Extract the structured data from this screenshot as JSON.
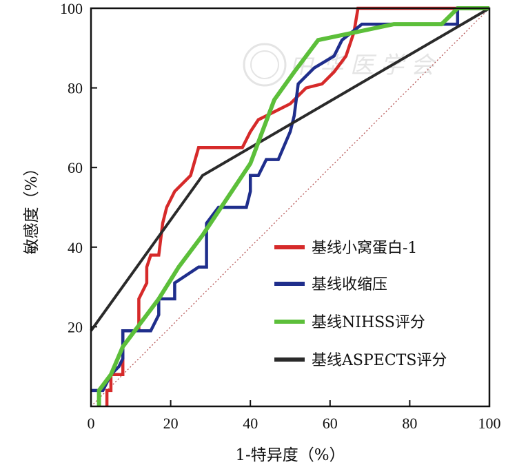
{
  "chart_data": {
    "type": "line",
    "title": "",
    "xlabel": "1-特异度（%）",
    "ylabel": "敏感度（%）",
    "xlim": [
      0,
      100
    ],
    "ylim": [
      0,
      100
    ],
    "x_ticks": [
      "0",
      "20",
      "40",
      "60",
      "80",
      "100"
    ],
    "y_ticks": [
      "20",
      "40",
      "60",
      "80",
      "100"
    ],
    "legend_position": "bottom-right",
    "reference_line": {
      "style": "dotted",
      "color": "#b04848",
      "points": [
        [
          0,
          0
        ],
        [
          100,
          100
        ]
      ]
    },
    "series": [
      {
        "name": "基线小窝蛋白-1",
        "color": "#d62a2a",
        "points": [
          [
            4,
            0
          ],
          [
            4,
            4
          ],
          [
            5,
            4
          ],
          [
            5,
            8
          ],
          [
            8,
            8
          ],
          [
            8,
            19
          ],
          [
            12,
            19
          ],
          [
            12,
            27
          ],
          [
            14,
            31
          ],
          [
            14,
            35
          ],
          [
            15,
            38
          ],
          [
            17,
            38
          ],
          [
            18,
            46
          ],
          [
            19,
            50
          ],
          [
            21,
            54
          ],
          [
            25,
            58
          ],
          [
            27,
            65
          ],
          [
            38,
            65
          ],
          [
            40,
            69
          ],
          [
            42,
            72
          ],
          [
            46,
            74
          ],
          [
            50,
            76
          ],
          [
            54,
            80
          ],
          [
            58,
            81
          ],
          [
            61,
            84
          ],
          [
            64,
            88
          ],
          [
            66,
            94
          ],
          [
            67,
            100
          ],
          [
            100,
            100
          ]
        ]
      },
      {
        "name": "基线收缩压",
        "color": "#1f2e8c",
        "points": [
          [
            0,
            4
          ],
          [
            3,
            4
          ],
          [
            5,
            8
          ],
          [
            7,
            10
          ],
          [
            8,
            12
          ],
          [
            8,
            19
          ],
          [
            15,
            19
          ],
          [
            17,
            23
          ],
          [
            17,
            27
          ],
          [
            21,
            27
          ],
          [
            21,
            31
          ],
          [
            27,
            35
          ],
          [
            29,
            35
          ],
          [
            29,
            46
          ],
          [
            32,
            50
          ],
          [
            39,
            50
          ],
          [
            40,
            54
          ],
          [
            40,
            58
          ],
          [
            42,
            58
          ],
          [
            44,
            62
          ],
          [
            47,
            62
          ],
          [
            50,
            69
          ],
          [
            51,
            73
          ],
          [
            52,
            81
          ],
          [
            56,
            85
          ],
          [
            61,
            88
          ],
          [
            63,
            92
          ],
          [
            68,
            96
          ],
          [
            80,
            96
          ],
          [
            92,
            96
          ],
          [
            92,
            100
          ],
          [
            100,
            100
          ]
        ]
      },
      {
        "name": "基线NIHSS评分",
        "color": "#5cbf3a",
        "points": [
          [
            2,
            0
          ],
          [
            2,
            4
          ],
          [
            5,
            8
          ],
          [
            8,
            15
          ],
          [
            17,
            27
          ],
          [
            22,
            35
          ],
          [
            28,
            43
          ],
          [
            34,
            52
          ],
          [
            40,
            61
          ],
          [
            43,
            69
          ],
          [
            46,
            77
          ],
          [
            51,
            84
          ],
          [
            57,
            92
          ],
          [
            76,
            96
          ],
          [
            88,
            96
          ],
          [
            90,
            98
          ],
          [
            92,
            100
          ],
          [
            100,
            100
          ]
        ]
      },
      {
        "name": "基线ASPECTS评分",
        "color": "#2a2a2a",
        "points": [
          [
            0,
            19
          ],
          [
            28,
            58
          ],
          [
            100,
            100
          ]
        ]
      }
    ]
  },
  "watermark": "中华医学会"
}
